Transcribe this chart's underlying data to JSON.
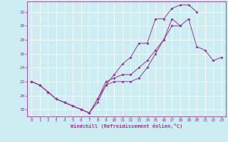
{
  "xlabel": "Windchill (Refroidissement éolien,°C)",
  "background_color": "#cceef2",
  "grid_color": "#ffffff",
  "line_color": "#993399",
  "xlim_min": -0.5,
  "xlim_max": 23.5,
  "ylim_min": 17.0,
  "ylim_max": 33.5,
  "yticks": [
    18,
    20,
    22,
    24,
    26,
    28,
    30,
    32
  ],
  "xticks": [
    0,
    1,
    2,
    3,
    4,
    5,
    6,
    7,
    8,
    9,
    10,
    11,
    12,
    13,
    14,
    15,
    16,
    17,
    18,
    19,
    20,
    21,
    22,
    23
  ],
  "line1_x": [
    0,
    1,
    2,
    3,
    4,
    5,
    6,
    7,
    8,
    9,
    10,
    11,
    12,
    13,
    14,
    15,
    16,
    17,
    18,
    19,
    20,
    21,
    22,
    23
  ],
  "line1_y": [
    22,
    21.5,
    20.5,
    19.5,
    19.0,
    18.5,
    18.0,
    17.5,
    19.0,
    21.5,
    22.0,
    22.0,
    22.0,
    22.5,
    24.0,
    26.0,
    28.0,
    31.0,
    30.0,
    31.0,
    27.0,
    26.5,
    25.0,
    25.5
  ],
  "line2_x": [
    0,
    1,
    2,
    3,
    4,
    5,
    6,
    7,
    8,
    9,
    10,
    11,
    12,
    13,
    14,
    15,
    16,
    17,
    18,
    19,
    20
  ],
  "line2_y": [
    22,
    21.5,
    20.5,
    19.5,
    19.0,
    18.5,
    18.0,
    17.5,
    19.5,
    21.5,
    23.0,
    24.5,
    25.5,
    27.5,
    27.5,
    31.0,
    31.0,
    32.5,
    33.0,
    33.0,
    32.0
  ],
  "line3_x": [
    0,
    1,
    2,
    3,
    4,
    5,
    6,
    7,
    8,
    9,
    10,
    11,
    12,
    13,
    14,
    15,
    16,
    17,
    18
  ],
  "line3_y": [
    22,
    21.5,
    20.5,
    19.5,
    19.0,
    18.5,
    18.0,
    17.5,
    19.5,
    22.0,
    22.5,
    23.0,
    23.0,
    24.0,
    25.0,
    26.5,
    28.0,
    30.0,
    30.0
  ]
}
